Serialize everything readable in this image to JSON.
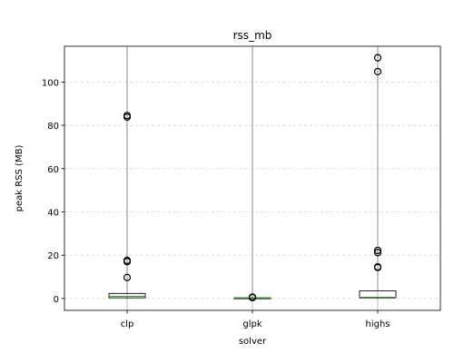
{
  "chart_data": {
    "type": "box",
    "title": "rss_mb",
    "xlabel": "solver",
    "ylabel": "peak RSS (MB)",
    "categories": [
      "clp",
      "glpk",
      "highs"
    ],
    "ylim": [
      -5.5,
      116.5
    ],
    "yticks": [
      0,
      20,
      40,
      60,
      80,
      100
    ],
    "grid": true,
    "boxes": [
      {
        "category": "clp",
        "whisker_low": 0.0,
        "q1": 0.3,
        "median": 1.0,
        "q3": 2.3,
        "whisker_high": 117,
        "outliers": [
          9.7,
          17.0,
          17.6,
          83.8,
          84.5
        ]
      },
      {
        "category": "glpk",
        "whisker_low": 0.0,
        "q1": 0.1,
        "median": 0.2,
        "q3": 0.3,
        "whisker_high": 117,
        "outliers": [
          0.4,
          0.6
        ]
      },
      {
        "category": "highs",
        "whisker_low": 0.0,
        "q1": 0.3,
        "median": 0.6,
        "q3": 3.5,
        "whisker_high": 117,
        "outliers": [
          14.3,
          14.6,
          21.2,
          22.2,
          104.8,
          111.2
        ]
      }
    ]
  }
}
